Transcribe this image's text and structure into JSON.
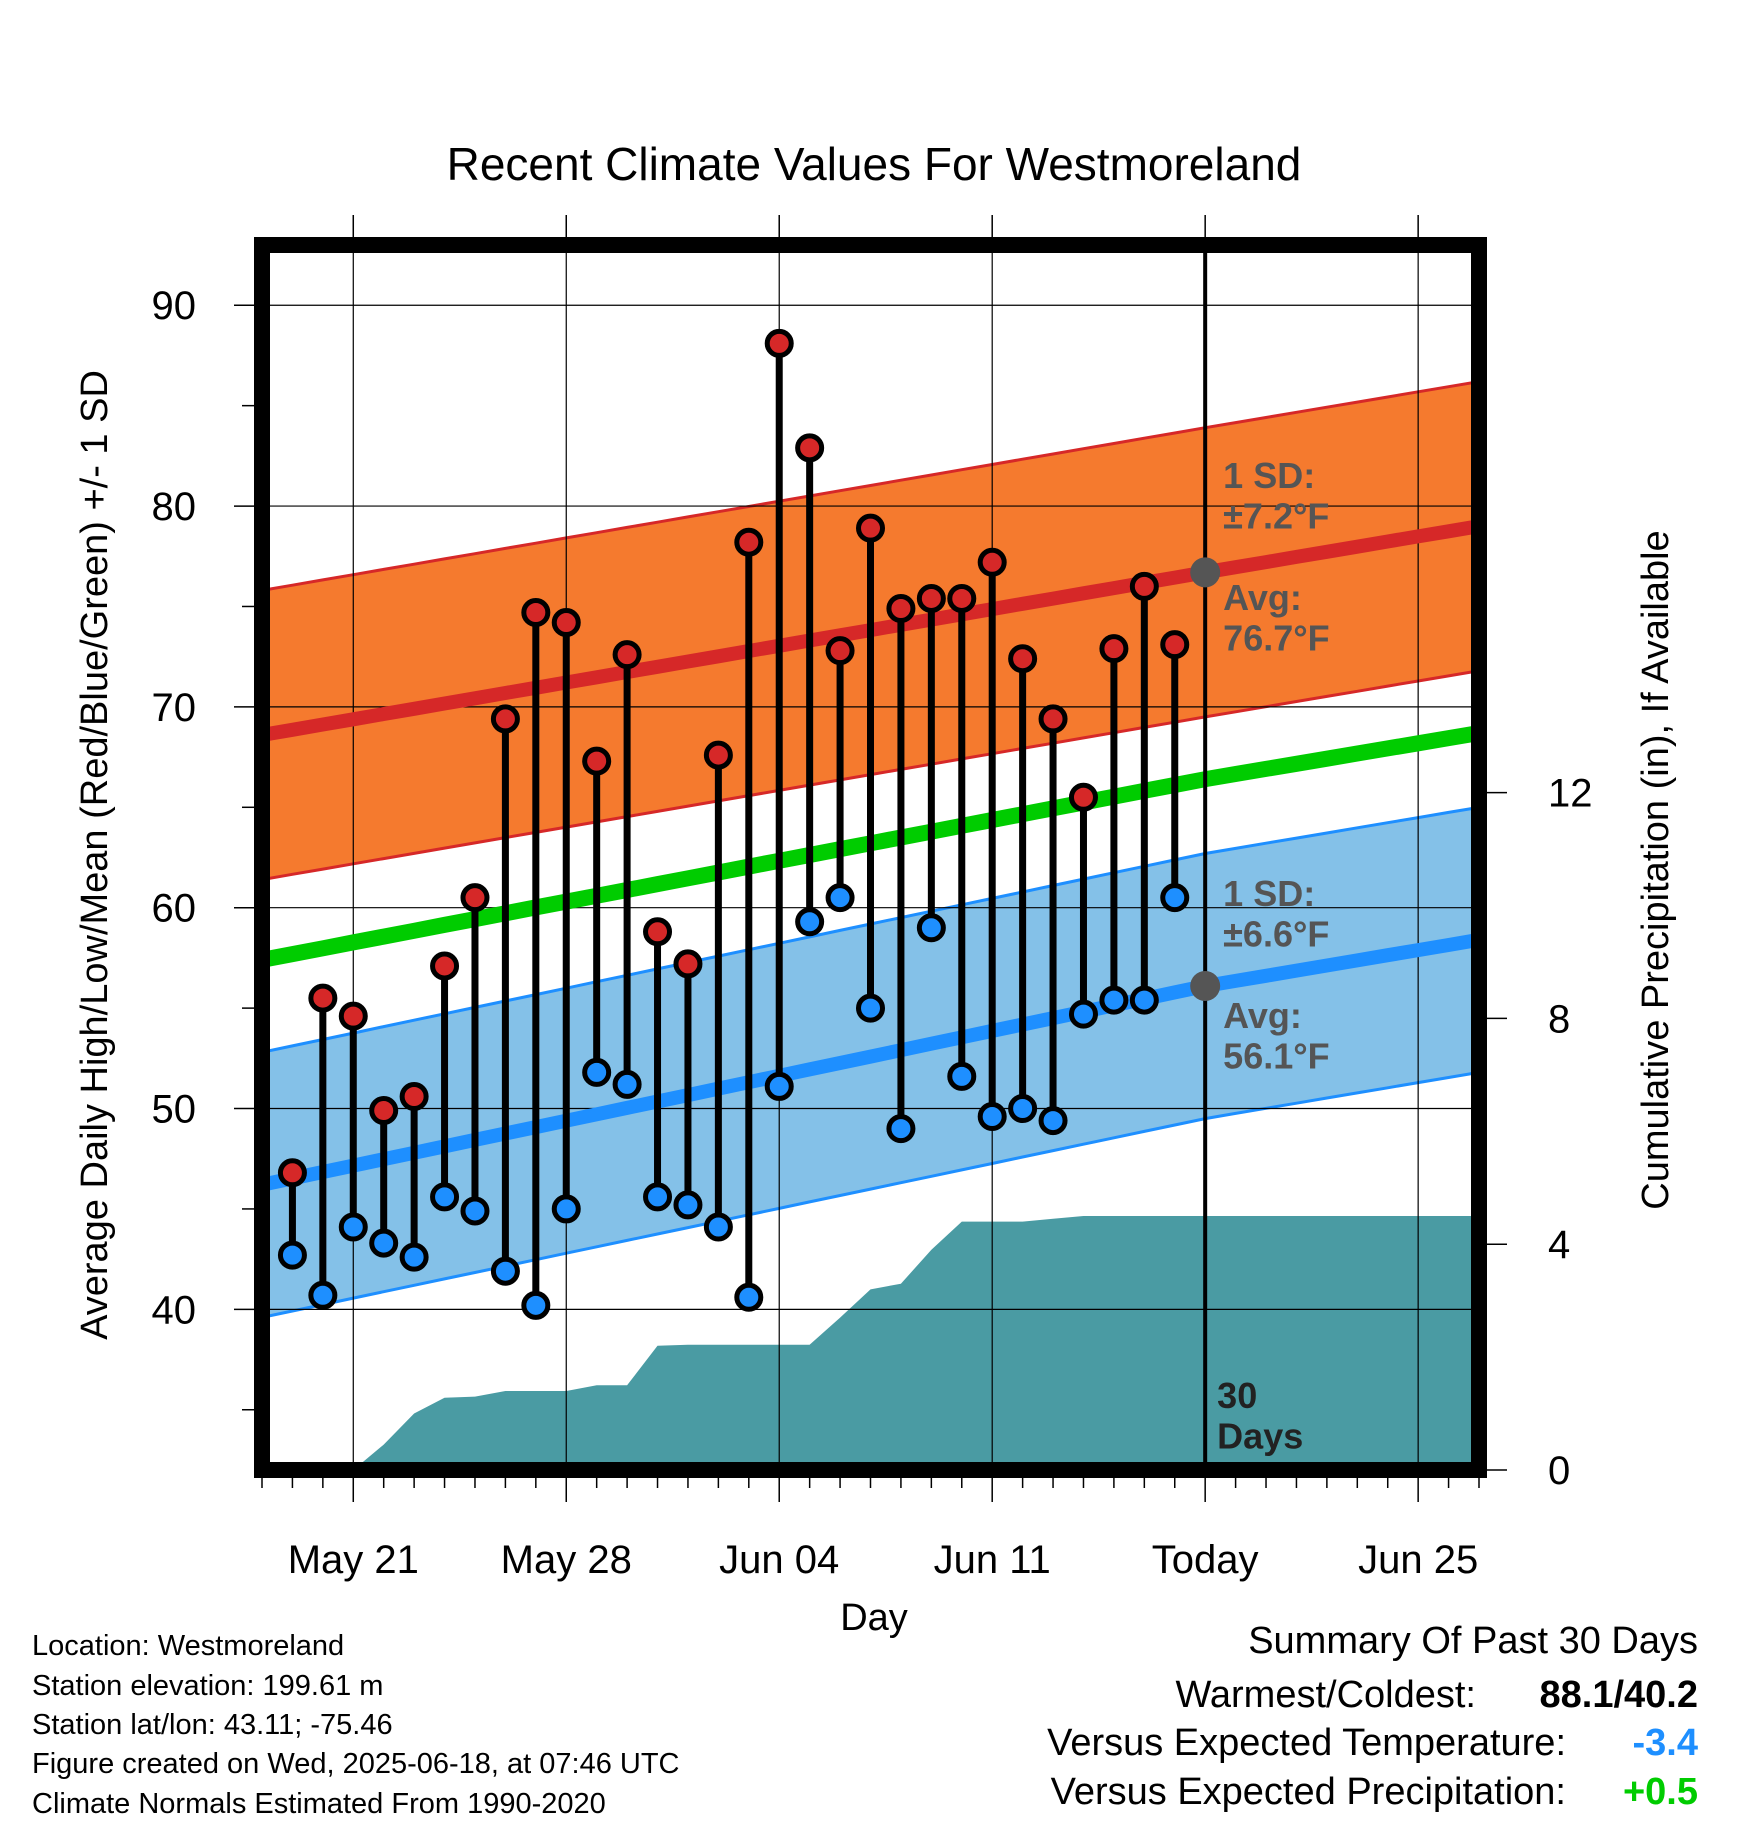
{
  "chart_data": {
    "type": "line",
    "title": "Recent Climate Values For Westmoreland",
    "xlabel": "Day",
    "ylabel_left": "Average Daily High/Low/Mean (Red/Blue/Green) +/- 1 SD",
    "ylabel_right": "Cumulative Precipitation (in), If Available",
    "y_left_range": [
      32,
      93
    ],
    "y_left_ticks": [
      "40",
      "50",
      "60",
      "70",
      "80",
      "90"
    ],
    "y_right_range": [
      0,
      21.7
    ],
    "y_right_ticks": [
      "0",
      "4",
      "8",
      "12"
    ],
    "x_range": [
      "2025-05-18",
      "2025-06-27"
    ],
    "x_ticks": [
      {
        "date": "2025-05-21",
        "label": "May 21"
      },
      {
        "date": "2025-05-28",
        "label": "May 28"
      },
      {
        "date": "2025-06-04",
        "label": "Jun 04"
      },
      {
        "date": "2025-06-11",
        "label": "Jun 11"
      },
      {
        "date": "2025-06-18",
        "label": "Today"
      },
      {
        "date": "2025-06-25",
        "label": "Jun 25"
      }
    ],
    "grid": true,
    "today": "2025-06-18",
    "window_label": "30\nDays",
    "normal_high": {
      "dates": [
        "2025-05-18",
        "2025-06-18",
        "2025-06-27"
      ],
      "avg": [
        68.6,
        76.7,
        79.0
      ],
      "sd": 7.2,
      "sd_label": "1 SD:\n±7.2°F",
      "avg_label": "Avg:\n76.7°F",
      "band_color": "#f57a2e",
      "line_color": "#d62828"
    },
    "normal_low": {
      "dates": [
        "2025-05-18",
        "2025-06-18",
        "2025-06-27"
      ],
      "avg": [
        46.2,
        56.1,
        58.4
      ],
      "sd": 6.6,
      "sd_label": "1 SD:\n±6.6°F",
      "avg_label": "Avg:\n56.1°F",
      "band_color": "#84c1e8",
      "line_color": "#1e8fff"
    },
    "normal_mean": {
      "dates": [
        "2025-05-18",
        "2025-06-18",
        "2025-06-27"
      ],
      "values": [
        57.4,
        66.4,
        68.7
      ],
      "color": "#00cc00"
    },
    "observed": {
      "dates": [
        "2025-05-19",
        "2025-05-20",
        "2025-05-21",
        "2025-05-22",
        "2025-05-23",
        "2025-05-24",
        "2025-05-25",
        "2025-05-26",
        "2025-05-27",
        "2025-05-28",
        "2025-05-29",
        "2025-05-30",
        "2025-05-31",
        "2025-06-01",
        "2025-06-02",
        "2025-06-03",
        "2025-06-04",
        "2025-06-05",
        "2025-06-06",
        "2025-06-07",
        "2025-06-08",
        "2025-06-09",
        "2025-06-10",
        "2025-06-11",
        "2025-06-12",
        "2025-06-13",
        "2025-06-14",
        "2025-06-15",
        "2025-06-16",
        "2025-06-17"
      ],
      "highs": [
        46.8,
        55.5,
        54.6,
        49.9,
        50.6,
        57.1,
        60.5,
        69.4,
        74.7,
        74.2,
        67.3,
        72.6,
        58.8,
        57.2,
        67.6,
        78.2,
        88.1,
        82.9,
        72.8,
        78.9,
        74.9,
        75.4,
        75.4,
        77.2,
        72.4,
        69.4,
        65.5,
        72.9,
        76.0,
        73.1
      ],
      "lows": [
        42.7,
        40.7,
        44.1,
        43.3,
        42.6,
        45.6,
        44.9,
        41.9,
        40.2,
        45.0,
        51.8,
        51.2,
        45.6,
        45.2,
        44.1,
        40.6,
        51.1,
        59.3,
        60.5,
        55.0,
        49.0,
        59.0,
        51.6,
        49.6,
        50.0,
        49.4,
        54.7,
        55.4,
        55.4,
        60.5
      ],
      "high_color": "#d62828",
      "low_color": "#1e8fff"
    },
    "precip": {
      "dates": [
        "2025-05-18",
        "2025-05-20",
        "2025-05-21",
        "2025-05-22",
        "2025-05-23",
        "2025-05-24",
        "2025-05-25",
        "2025-05-26",
        "2025-05-27",
        "2025-05-28",
        "2025-05-29",
        "2025-05-30",
        "2025-05-31",
        "2025-06-01",
        "2025-06-02",
        "2025-06-03",
        "2025-06-04",
        "2025-06-05",
        "2025-06-06",
        "2025-06-07",
        "2025-06-08",
        "2025-06-09",
        "2025-06-10",
        "2025-06-11",
        "2025-06-12",
        "2025-06-13",
        "2025-06-14",
        "2025-06-27"
      ],
      "values": [
        0,
        0,
        0.0,
        0.45,
        1.0,
        1.28,
        1.3,
        1.4,
        1.4,
        1.4,
        1.5,
        1.5,
        2.2,
        2.22,
        2.22,
        2.22,
        2.22,
        2.22,
        2.7,
        3.2,
        3.3,
        3.9,
        4.4,
        4.4,
        4.4,
        4.45,
        4.5,
        4.5
      ],
      "color": "#4a9ba3"
    }
  },
  "info": {
    "location": "Location: Westmoreland",
    "elevation": "Station elevation: 199.61 m",
    "latlon": "Station lat/lon: 43.11; -75.46",
    "created": "Figure created on Wed, 2025-06-18, at 07:46 UTC",
    "normals": "Climate Normals Estimated From 1990-2020"
  },
  "summary": {
    "heading": "Summary Of Past 30 Days",
    "warmest_label": "Warmest/Coldest:",
    "warmest_value": "88.1/40.2",
    "temp_label": "Versus Expected Temperature:",
    "temp_value": "-3.4",
    "temp_color": "#1e8fff",
    "precip_label": "Versus Expected Precipitation:",
    "precip_value": "+0.5",
    "precip_color": "#00cc00"
  }
}
